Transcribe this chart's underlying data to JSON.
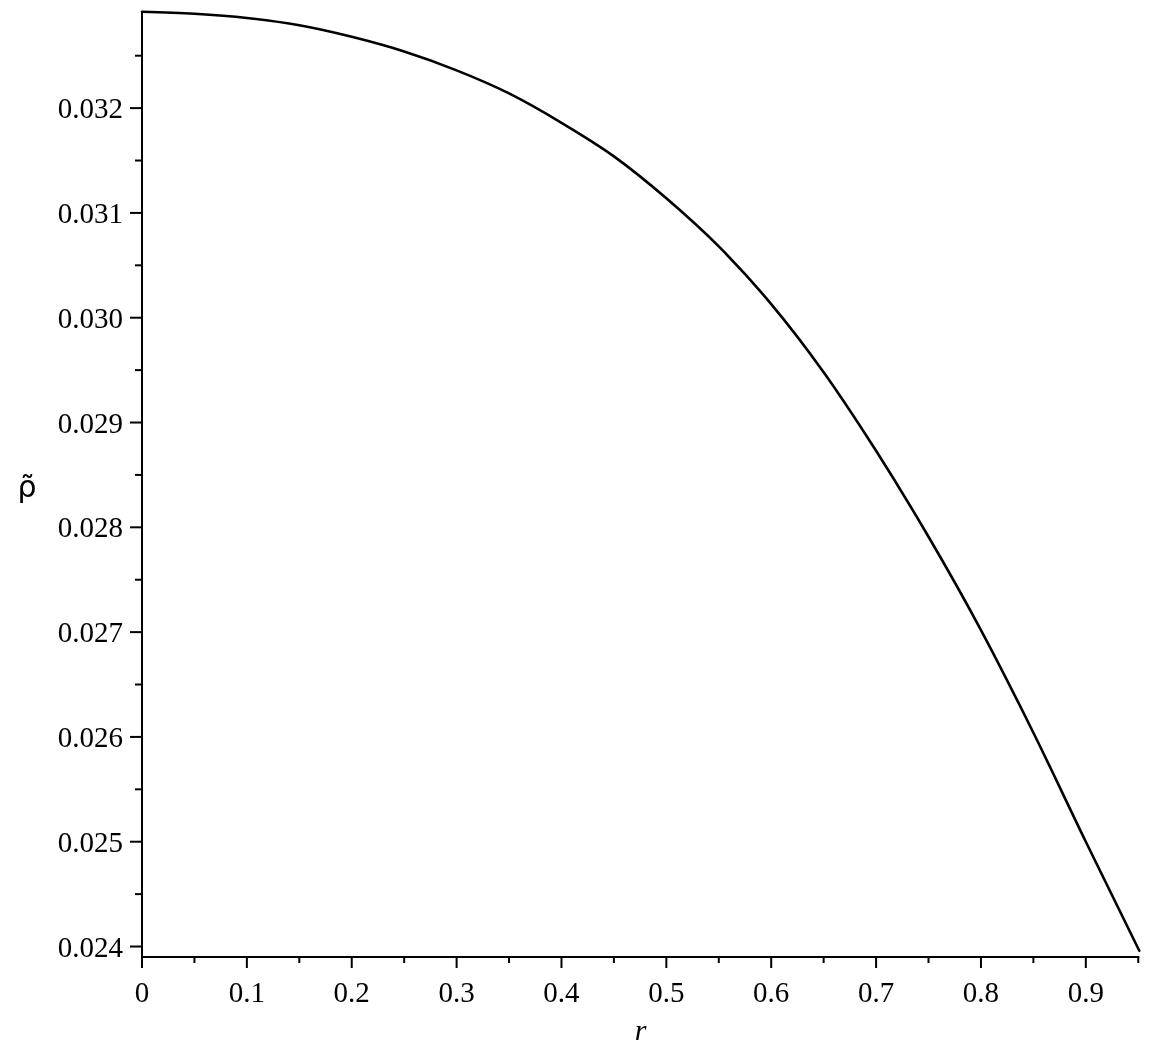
{
  "chart_data": {
    "type": "line",
    "xlabel": "r",
    "ylabel": "ρ̃",
    "x": [
      0,
      0.05,
      0.1,
      0.15,
      0.2,
      0.25,
      0.3,
      0.35,
      0.4,
      0.45,
      0.5,
      0.55,
      0.6,
      0.65,
      0.7,
      0.75,
      0.8,
      0.85,
      0.9,
      0.951
    ],
    "series": [
      {
        "color": "#000000",
        "values": [
          0.03292,
          0.0329,
          0.03286,
          0.03279,
          0.03268,
          0.03254,
          0.03236,
          0.03214,
          0.03186,
          0.03154,
          0.03114,
          0.03068,
          0.03013,
          0.02948,
          0.02873,
          0.02791,
          0.02702,
          0.02604,
          0.025,
          0.02396
        ]
      }
    ],
    "xlim": [
      0,
      0.951
    ],
    "ylim": [
      0.0239,
      0.03292
    ],
    "xticks": [
      0,
      {
        "value": 0.05,
        "label": null
      },
      0.1,
      {
        "value": 0.15,
        "label": null
      },
      0.2,
      {
        "value": 0.25,
        "label": null
      },
      0.3,
      {
        "value": 0.35,
        "label": null
      },
      0.4,
      {
        "value": 0.45,
        "label": null
      },
      0.5,
      {
        "value": 0.55,
        "label": null
      },
      0.6,
      {
        "value": 0.65,
        "label": null
      },
      0.7,
      {
        "value": 0.75,
        "label": null
      },
      0.8,
      {
        "value": 0.85,
        "label": null
      },
      0.9,
      {
        "value": 0.95,
        "label": null
      }
    ],
    "yticks": [
      0.024,
      {
        "value": 0.0245,
        "label": null
      },
      0.025,
      {
        "value": 0.0255,
        "label": null
      },
      0.026,
      {
        "value": 0.0265,
        "label": null
      },
      0.027,
      {
        "value": 0.0275,
        "label": null
      },
      0.028,
      {
        "value": 0.0285,
        "label": null
      },
      0.029,
      {
        "value": 0.0295,
        "label": null
      },
      {
        "value": 0.03,
        "label": "0.030"
      },
      {
        "value": 0.0305,
        "label": null
      },
      0.031,
      {
        "value": 0.0315,
        "label": null
      },
      0.032,
      {
        "value": 0.0325,
        "label": null
      }
    ]
  }
}
